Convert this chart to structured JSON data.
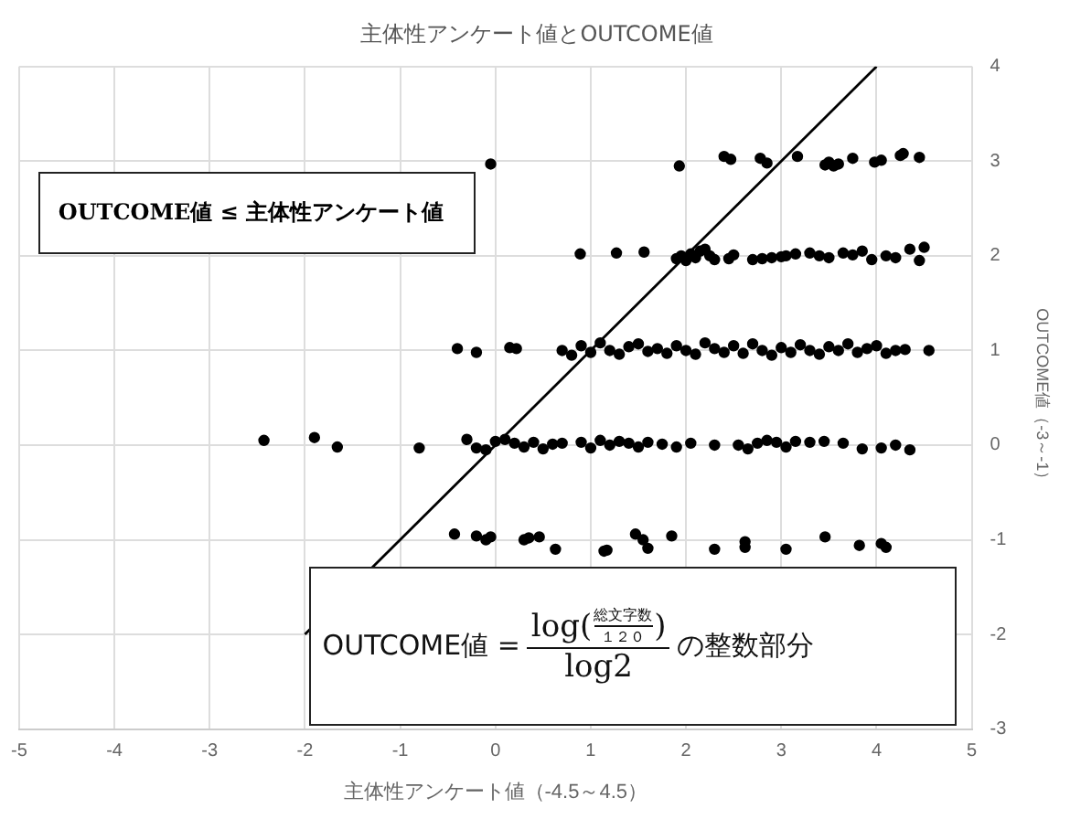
{
  "chart_data": {
    "type": "scatter",
    "title": "主体性アンケート値とOUTCOME値",
    "xlabel": "主体性アンケート値（-4.5～4.5）",
    "ylabel": "OUTCOME値（-3～-1）",
    "xlim": [
      -5,
      5
    ],
    "xticks": [
      -5,
      -4,
      -3,
      -2,
      -1,
      0,
      1,
      2,
      3,
      4,
      5
    ],
    "ylim": [
      -3,
      4
    ],
    "yticks": [
      -3,
      -2,
      -1,
      0,
      1,
      2,
      3,
      4
    ],
    "grid": true,
    "legend": false,
    "marker": "circle",
    "annotations": [
      "OUTCOME値 ≤ 主体性アンケート値",
      "OUTCOME値 =",
      "log(",
      "総文字数",
      "１２０",
      ")",
      "log2",
      "の整数部分"
    ],
    "series": [
      {
        "type": "scatter",
        "color": "#000000",
        "x": [
          -0.05,
          1.93,
          2.4,
          2.47,
          2.78,
          2.85,
          3.17,
          3.46,
          3.5,
          3.55,
          3.6,
          3.75,
          3.98,
          4.05,
          4.25,
          4.28,
          4.45,
          0.89,
          1.27,
          1.56,
          1.9,
          1.95,
          2.0,
          2.05,
          2.1,
          2.15,
          2.2,
          2.25,
          2.3,
          2.45,
          2.5,
          2.7,
          2.8,
          2.9,
          3.0,
          3.05,
          3.15,
          3.3,
          3.4,
          3.5,
          3.65,
          3.75,
          3.85,
          3.95,
          4.1,
          4.2,
          4.35,
          4.45,
          4.5,
          -0.4,
          -0.2,
          0.15,
          0.22,
          0.7,
          0.8,
          0.9,
          1.0,
          1.1,
          1.2,
          1.3,
          1.4,
          1.5,
          1.6,
          1.7,
          1.8,
          1.9,
          2.0,
          2.1,
          2.2,
          2.3,
          2.4,
          2.5,
          2.6,
          2.7,
          2.8,
          2.9,
          3.0,
          3.1,
          3.2,
          3.3,
          3.4,
          3.5,
          3.6,
          3.7,
          3.8,
          3.9,
          4.0,
          4.1,
          4.2,
          4.3,
          4.55,
          -2.43,
          -1.9,
          -1.66,
          -0.8,
          -0.3,
          -0.2,
          -0.1,
          0.0,
          0.1,
          0.2,
          0.3,
          0.4,
          0.5,
          0.6,
          0.7,
          0.9,
          1.0,
          1.1,
          1.2,
          1.3,
          1.4,
          1.5,
          1.6,
          1.75,
          1.9,
          2.05,
          2.3,
          2.55,
          2.65,
          2.75,
          2.85,
          2.95,
          3.05,
          3.15,
          3.3,
          3.45,
          3.65,
          3.85,
          4.05,
          4.2,
          4.35,
          -0.43,
          -0.2,
          -0.1,
          -0.05,
          0.3,
          0.35,
          0.46,
          0.63,
          1.14,
          1.17,
          1.47,
          1.55,
          1.6,
          1.85,
          2.3,
          2.62,
          2.62,
          3.05,
          3.46,
          3.82,
          4.05,
          4.1
        ],
        "values": [
          2.97,
          2.95,
          3.05,
          3.02,
          3.03,
          2.98,
          3.05,
          2.96,
          2.99,
          2.95,
          2.97,
          3.03,
          2.99,
          3.01,
          3.06,
          3.08,
          3.04,
          2.02,
          2.03,
          2.04,
          1.97,
          2.0,
          1.95,
          2.02,
          1.98,
          2.05,
          2.07,
          2.0,
          1.96,
          1.97,
          2.01,
          1.96,
          1.97,
          1.98,
          1.99,
          2.0,
          2.02,
          2.03,
          2.0,
          1.98,
          2.03,
          2.01,
          2.05,
          1.96,
          2.0,
          1.98,
          2.07,
          1.95,
          2.09,
          1.02,
          0.98,
          1.03,
          1.02,
          1.0,
          0.95,
          1.05,
          0.98,
          1.08,
          1.0,
          0.96,
          1.04,
          1.07,
          0.99,
          1.02,
          0.97,
          1.05,
          1.0,
          0.96,
          1.08,
          1.02,
          0.98,
          1.05,
          0.97,
          1.07,
          1.0,
          0.95,
          1.03,
          0.98,
          1.06,
          1.0,
          0.96,
          1.04,
          1.0,
          1.07,
          0.98,
          1.02,
          1.05,
          0.97,
          1.0,
          1.01,
          1.0,
          0.05,
          0.08,
          -0.02,
          -0.03,
          0.06,
          -0.03,
          -0.05,
          0.04,
          0.06,
          0.02,
          -0.02,
          0.03,
          -0.04,
          0.01,
          0.02,
          0.03,
          -0.03,
          0.05,
          0.0,
          0.04,
          0.02,
          -0.02,
          0.03,
          0.01,
          -0.02,
          0.02,
          0.0,
          0.0,
          -0.04,
          0.02,
          0.05,
          0.03,
          -0.02,
          0.04,
          0.03,
          0.04,
          0.02,
          -0.04,
          -0.03,
          0.0,
          -0.05,
          -0.94,
          -0.96,
          -1.0,
          -0.97,
          -1.0,
          -0.98,
          -0.97,
          -1.1,
          -1.12,
          -1.11,
          -0.94,
          -1.0,
          -1.09,
          -0.96,
          -1.1,
          -1.08,
          -1.02,
          -1.1,
          -0.97,
          -1.06,
          -1.04,
          -1.08
        ]
      },
      {
        "type": "line",
        "color": "#000000",
        "x": [
          -2,
          4
        ],
        "values": [
          -2,
          4
        ],
        "marker": "none"
      }
    ]
  }
}
